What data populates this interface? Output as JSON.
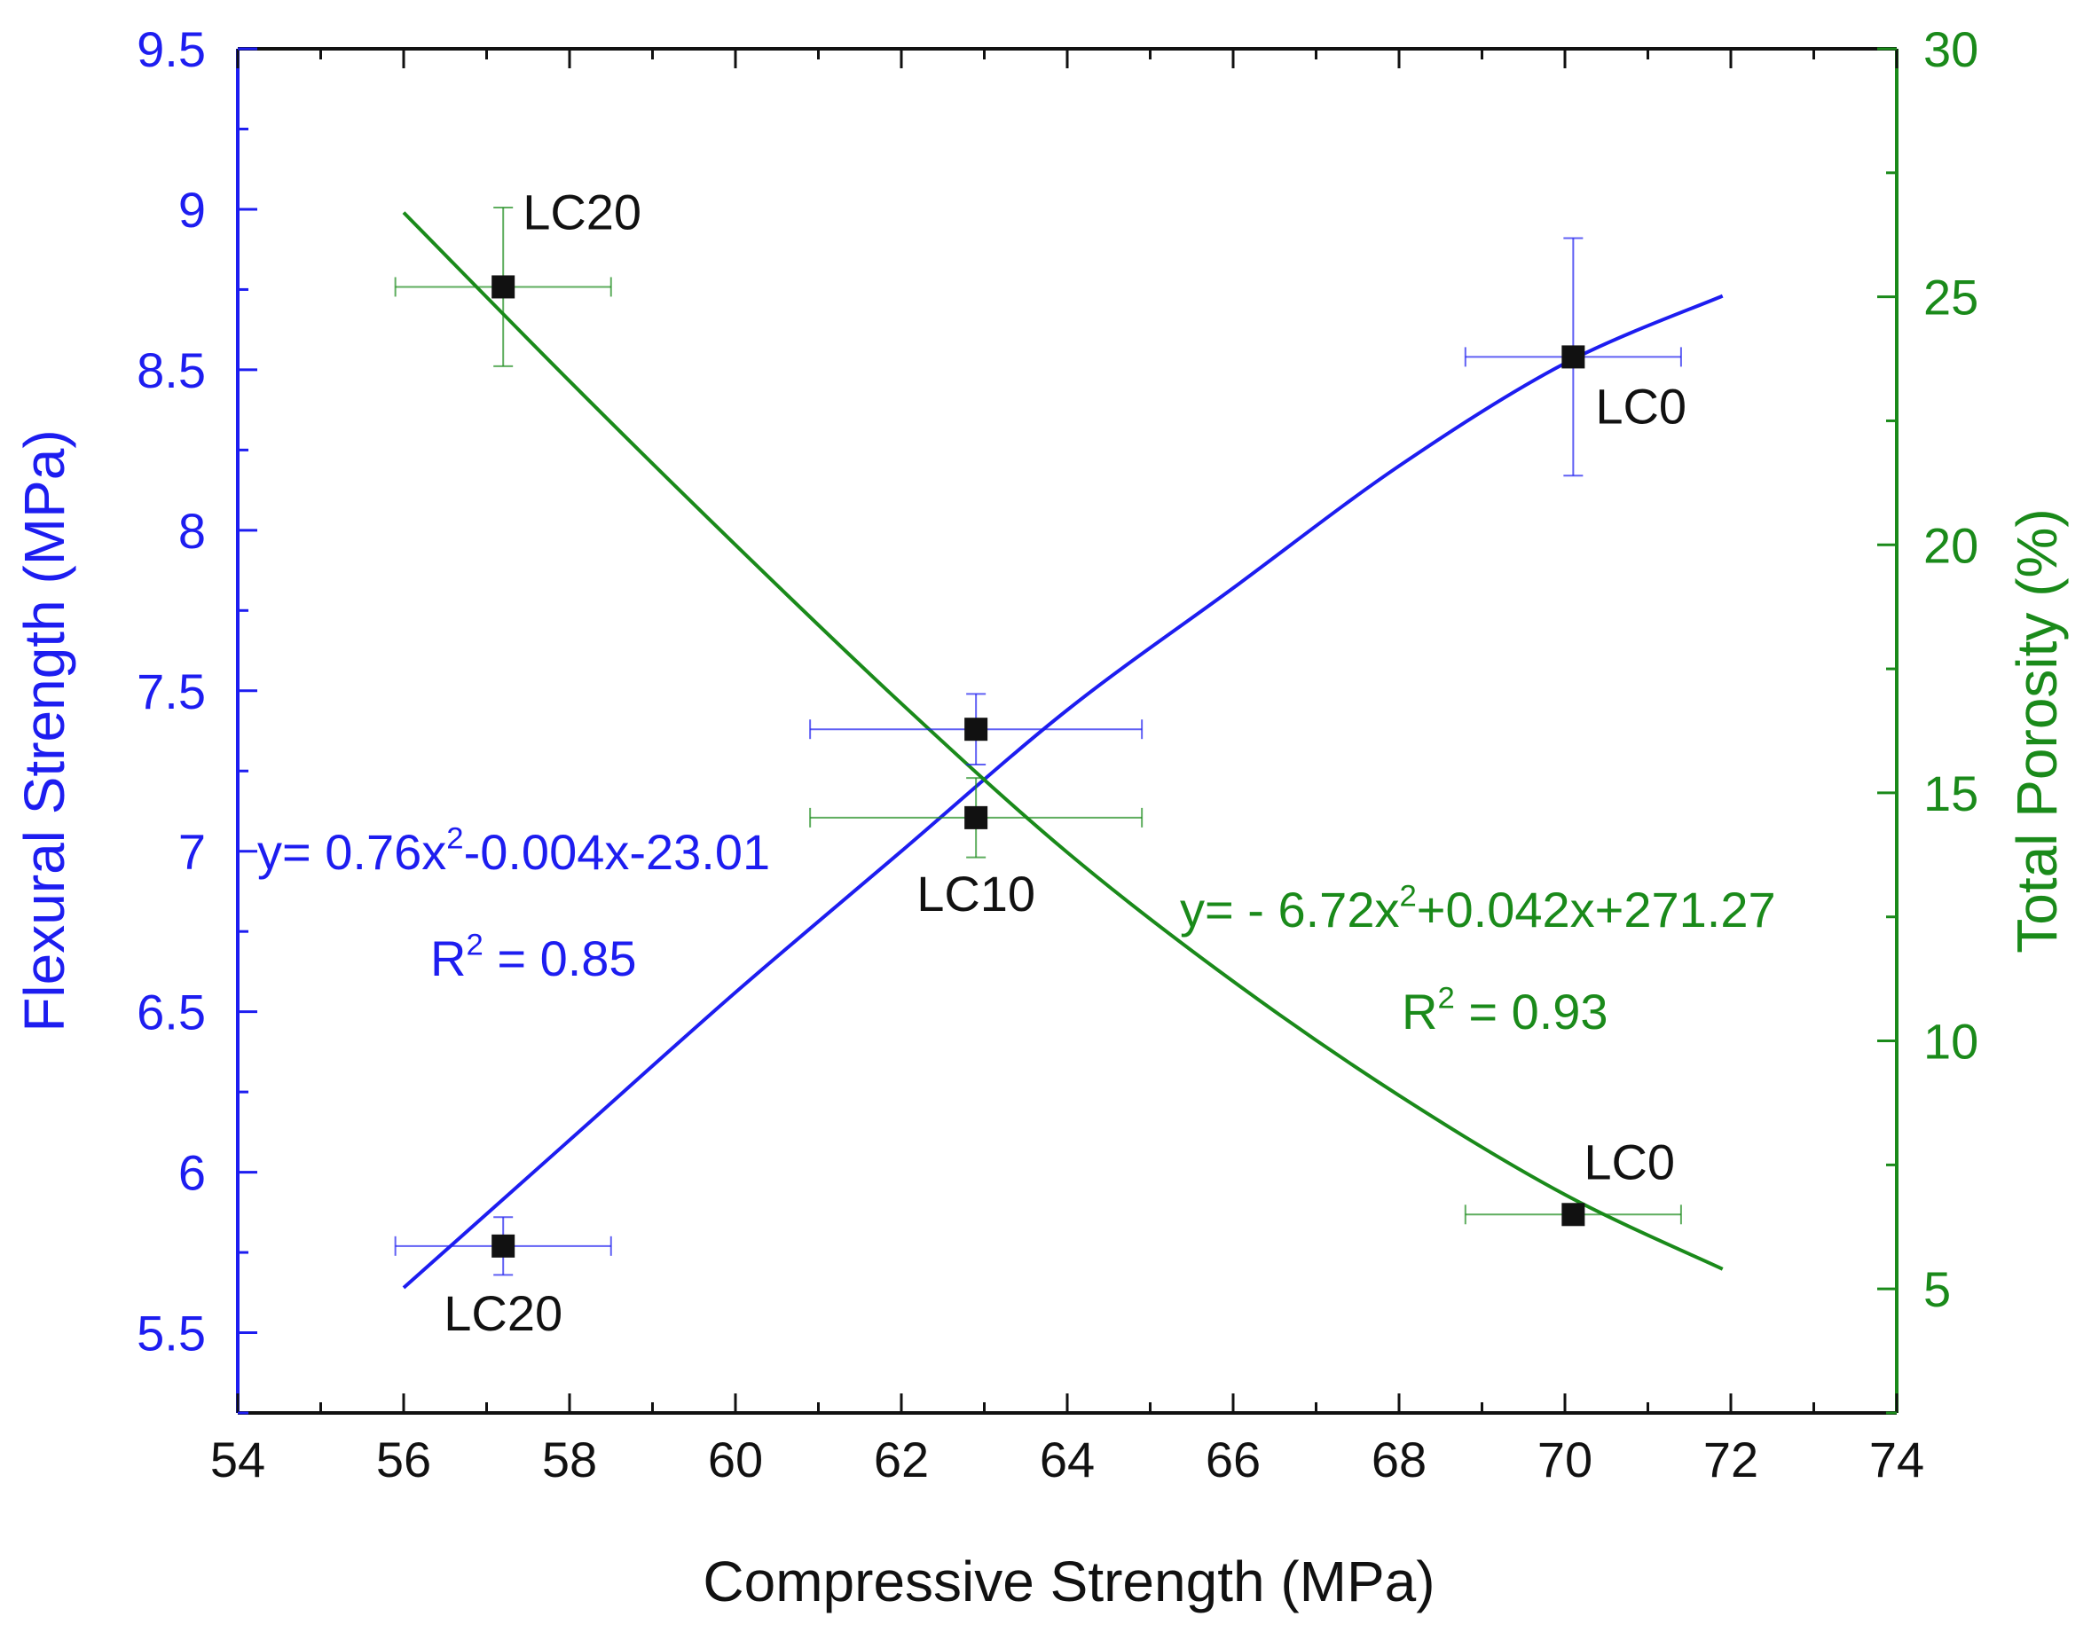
{
  "chart_data": {
    "type": "scatter",
    "xlabel": "Compressive Strength (MPa)",
    "ylabel_left": "Flexural Strength (MPa)",
    "ylabel_right": "Total Porosity (%)",
    "xlim": [
      54,
      74
    ],
    "ylim_left": [
      5.25,
      9.5
    ],
    "ylim_right": [
      2.5,
      30
    ],
    "x_ticks": [
      "54",
      "56",
      "58",
      "60",
      "62",
      "64",
      "66",
      "68",
      "70",
      "72",
      "74"
    ],
    "y_left_ticks": [
      "5.5",
      "6",
      "6.5",
      "7",
      "7.5",
      "8",
      "8.5",
      "9",
      "9.5"
    ],
    "y_right_ticks": [
      "5",
      "10",
      "15",
      "20",
      "25",
      "30"
    ],
    "colors": {
      "flexural": "#1d1df0",
      "porosity": "#1a8a1a",
      "marker": "#111111"
    },
    "series": [
      {
        "name": "Flexural Strength",
        "axis": "left",
        "points": [
          {
            "label": "LC20",
            "x": 57.2,
            "y": 5.77,
            "xerr": 1.3,
            "yerr": 0.09
          },
          {
            "label": "LC10",
            "x": 62.9,
            "y": 7.38,
            "xerr": 2.0,
            "yerr": 0.11
          },
          {
            "label": "LC0",
            "x": 70.1,
            "y": 8.54,
            "xerr": 1.3,
            "yerr": 0.37
          }
        ],
        "fit": {
          "x_range": [
            56,
            71.9
          ],
          "samples": [
            [
              56,
              5.64
            ],
            [
              58,
              6.1
            ],
            [
              60,
              6.56
            ],
            [
              62,
              7.0
            ],
            [
              64,
              7.44
            ],
            [
              66,
              7.82
            ],
            [
              68,
              8.2
            ],
            [
              70,
              8.52
            ],
            [
              71.9,
              8.73
            ]
          ],
          "equation": {
            "prefix": "y= 0.76x",
            "sup": "2",
            "suffix": "-0.004x-23.01"
          },
          "r2": {
            "prefix": "R",
            "sup": "2",
            "suffix": " = 0.85"
          }
        }
      },
      {
        "name": "Total Porosity",
        "axis": "right",
        "points": [
          {
            "label": "LC20",
            "x": 57.2,
            "y": 25.2,
            "xerr": 1.3,
            "yerr": 1.6
          },
          {
            "label": "LC10",
            "x": 62.9,
            "y": 14.5,
            "xerr": 2.0,
            "yerr": 0.8
          },
          {
            "label": "LC0",
            "x": 70.1,
            "y": 6.5,
            "xerr": 1.3,
            "yerr": 0.2
          }
        ],
        "fit": {
          "x_range": [
            56,
            71.9
          ],
          "samples": [
            [
              56,
              26.7
            ],
            [
              58,
              23.3
            ],
            [
              60,
              20.0
            ],
            [
              62,
              16.8
            ],
            [
              64,
              13.8
            ],
            [
              66,
              11.2
            ],
            [
              68,
              8.9
            ],
            [
              70,
              6.9
            ],
            [
              71.9,
              5.4
            ]
          ],
          "equation": {
            "prefix": "y= - 6.72x",
            "sup": "2",
            "suffix": "+0.042x+271.27"
          },
          "r2": {
            "prefix": "R",
            "sup": "2",
            "suffix": " = 0.93"
          }
        }
      }
    ]
  }
}
